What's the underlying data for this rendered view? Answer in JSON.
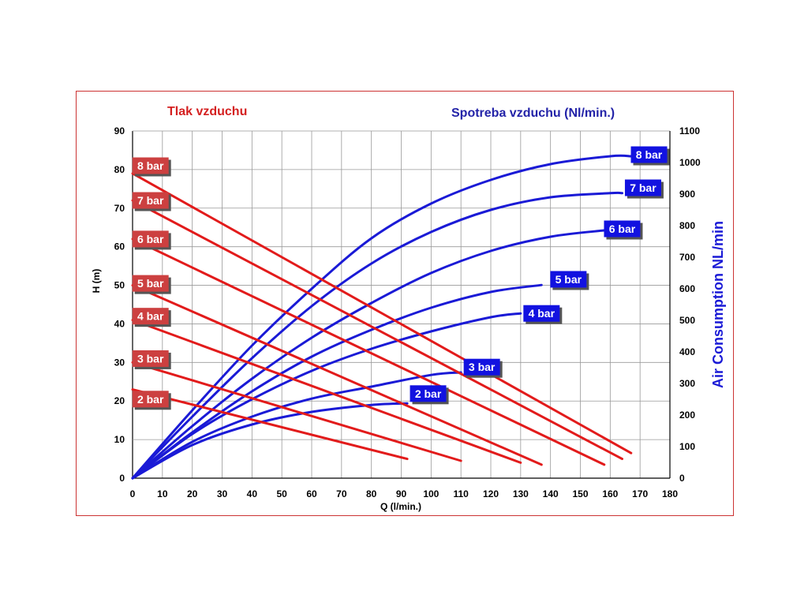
{
  "chart_data": {
    "type": "line",
    "title_left": "Tlak vzduchu",
    "title_right": "Spotreba vzduchu (Nl/min.)",
    "xlabel": "Q (l/min.)",
    "ylabel": "H (m)",
    "y2label": "Air Consumption NL/min",
    "xlim": [
      0,
      180
    ],
    "ylim": [
      0,
      90
    ],
    "y2lim": [
      0,
      1100
    ],
    "xticks": [
      0,
      10,
      20,
      30,
      40,
      50,
      60,
      70,
      80,
      90,
      100,
      110,
      120,
      130,
      140,
      150,
      160,
      170,
      180
    ],
    "yticks": [
      0,
      10,
      20,
      30,
      40,
      50,
      60,
      70,
      80,
      90
    ],
    "y2ticks": [
      0,
      100,
      200,
      300,
      400,
      500,
      600,
      700,
      800,
      900,
      1000,
      1100
    ],
    "grid": true,
    "colors": {
      "head": "#e21b1b",
      "air": "#1a1ad6",
      "head_tag": "#cc4040",
      "air_tag": "#1212e0"
    },
    "head_series": [
      {
        "name": "2 bar",
        "x": [
          0,
          92
        ],
        "y": [
          23,
          5
        ]
      },
      {
        "name": "3 bar",
        "x": [
          0,
          110
        ],
        "y": [
          30,
          4.5
        ]
      },
      {
        "name": "4 bar",
        "x": [
          0,
          130
        ],
        "y": [
          41,
          4
        ]
      },
      {
        "name": "5 bar",
        "x": [
          0,
          137
        ],
        "y": [
          50,
          3.5
        ]
      },
      {
        "name": "6 bar",
        "x": [
          0,
          158
        ],
        "y": [
          62,
          3.5
        ]
      },
      {
        "name": "7 bar",
        "x": [
          0,
          164
        ],
        "y": [
          72,
          5
        ]
      },
      {
        "name": "8 bar",
        "x": [
          0,
          167
        ],
        "y": [
          79,
          6.5
        ]
      }
    ],
    "air_series": [
      {
        "name": "2 bar",
        "x": [
          0,
          20,
          40,
          60,
          80,
          92
        ],
        "y": [
          0,
          105,
          170,
          210,
          232,
          237
        ]
      },
      {
        "name": "3 bar",
        "x": [
          0,
          20,
          40,
          60,
          80,
          100,
          110
        ],
        "y": [
          0,
          115,
          195,
          252,
          290,
          327,
          335
        ]
      },
      {
        "name": "4 bar",
        "x": [
          0,
          20,
          40,
          60,
          80,
          100,
          120,
          130
        ],
        "y": [
          0,
          140,
          250,
          340,
          410,
          465,
          510,
          522
        ]
      },
      {
        "name": "5 bar",
        "x": [
          0,
          20,
          40,
          60,
          80,
          100,
          120,
          137
        ],
        "y": [
          0,
          145,
          275,
          385,
          470,
          540,
          590,
          612
        ]
      },
      {
        "name": "6 bar",
        "x": [
          0,
          20,
          40,
          60,
          80,
          100,
          120,
          140,
          158
        ],
        "y": [
          0,
          165,
          315,
          445,
          555,
          650,
          720,
          765,
          785
        ]
      },
      {
        "name": "7 bar",
        "x": [
          0,
          20,
          40,
          60,
          80,
          100,
          120,
          140,
          160,
          164
        ],
        "y": [
          0,
          195,
          380,
          545,
          680,
          780,
          850,
          890,
          903,
          903
        ]
      },
      {
        "name": "8 bar",
        "x": [
          0,
          20,
          40,
          60,
          80,
          100,
          120,
          140,
          160,
          167
        ],
        "y": [
          0,
          215,
          420,
          600,
          760,
          870,
          945,
          995,
          1020,
          1020
        ]
      }
    ],
    "head_tags": [
      {
        "label": "8 bar",
        "x": 6,
        "y": 81
      },
      {
        "label": "7 bar",
        "x": 6,
        "y": 72
      },
      {
        "label": "6 bar",
        "x": 6,
        "y": 62
      },
      {
        "label": "5 bar",
        "x": 6,
        "y": 50.5
      },
      {
        "label": "4 bar",
        "x": 6,
        "y": 42
      },
      {
        "label": "3 bar",
        "x": 6,
        "y": 31
      },
      {
        "label": "2 bar",
        "x": 6,
        "y": 20.5
      }
    ],
    "air_tags": [
      {
        "label": "8 bar",
        "x": 173,
        "y": 1025
      },
      {
        "label": "7 bar",
        "x": 171,
        "y": 920
      },
      {
        "label": "6 bar",
        "x": 164,
        "y": 790
      },
      {
        "label": "5 bar",
        "x": 146,
        "y": 630
      },
      {
        "label": "4 bar",
        "x": 137,
        "y": 522
      },
      {
        "label": "3 bar",
        "x": 117,
        "y": 352
      },
      {
        "label": "2 bar",
        "x": 99,
        "y": 268
      }
    ]
  }
}
